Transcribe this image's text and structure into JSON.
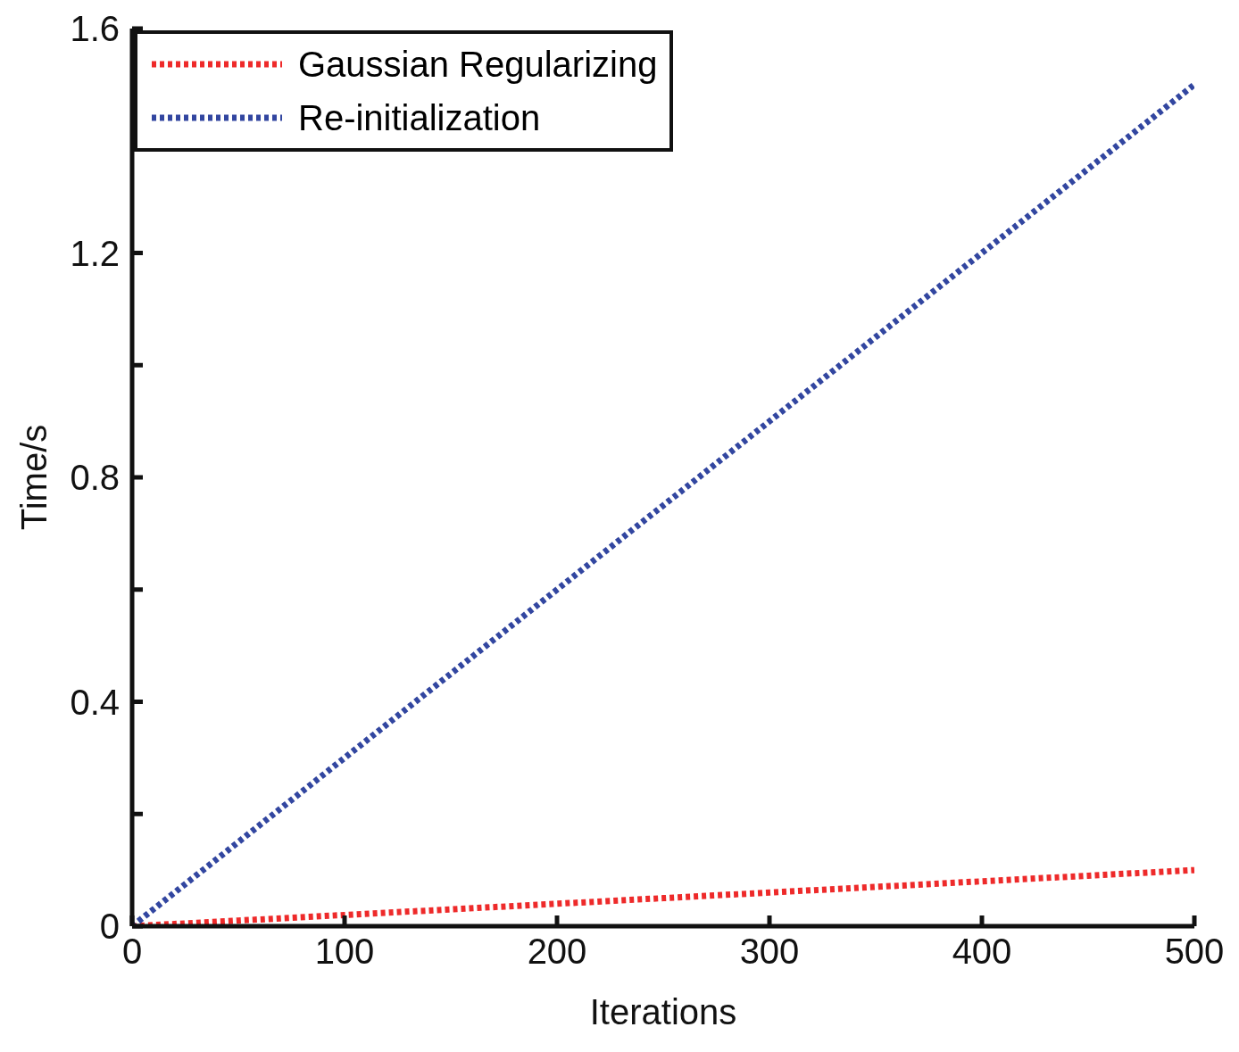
{
  "chart_data": {
    "type": "line",
    "xlabel": "Iterations",
    "ylabel": "Time/s",
    "x": [
      0,
      50,
      100,
      150,
      200,
      250,
      300,
      350,
      400,
      450,
      500
    ],
    "series": [
      {
        "name": "Gaussian Regularizing",
        "color": "#ee2a2a",
        "values": [
          0,
          0.01,
          0.02,
          0.03,
          0.04,
          0.05,
          0.06,
          0.07,
          0.08,
          0.09,
          0.1
        ]
      },
      {
        "name": "Re-initialization",
        "color": "#3246a0",
        "values": [
          0,
          0.15,
          0.3,
          0.45,
          0.6,
          0.75,
          0.9,
          1.05,
          1.2,
          1.35,
          1.5
        ]
      }
    ],
    "xlim": [
      0,
      500
    ],
    "xticks": [
      0,
      100,
      200,
      300,
      400,
      500
    ],
    "ylim": [
      0,
      1.6
    ],
    "yticks": [
      0,
      {
        "value": 0.2,
        "label": null
      },
      0.4,
      {
        "value": 0.6,
        "label": null
      },
      0.8,
      {
        "value": 1.0,
        "label": null
      },
      1.2,
      {
        "value": 1.4,
        "label": null
      },
      1.6
    ],
    "legend": "top left",
    "line_style": "dotted",
    "marker": "none",
    "grid": false
  }
}
